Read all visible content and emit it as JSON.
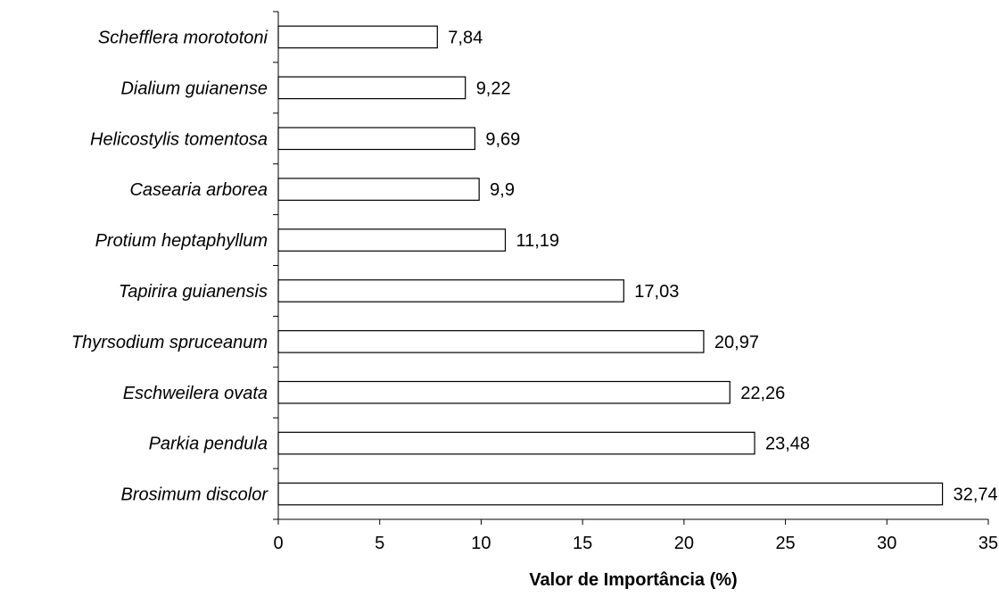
{
  "chart_data": {
    "type": "bar",
    "orientation": "horizontal",
    "categories": [
      "Schefflera morototoni",
      "Dialium guianense",
      "Helicostylis tomentosa",
      "Casearia arborea",
      "Protium heptaphyllum",
      "Tapirira guianensis",
      "Thyrsodium spruceanum",
      "Eschweilera ovata",
      "Parkia pendula",
      "Brosimum discolor"
    ],
    "values": [
      7.84,
      9.22,
      9.69,
      9.9,
      11.19,
      17.03,
      20.97,
      22.26,
      23.48,
      32.74
    ],
    "value_labels": [
      "7,84",
      "9,22",
      "9,69",
      "9,9",
      "11,19",
      "17,03",
      "20,97",
      "22,26",
      "23,48",
      "32,74"
    ],
    "xlabel": "Valor de Importância (%)",
    "ylabel": "",
    "title": "",
    "xlim": [
      0,
      35
    ],
    "xticks": [
      0,
      5,
      10,
      15,
      20,
      25,
      30,
      35
    ],
    "grid": false,
    "legend": "none",
    "bar_fill": "#ffffff",
    "bar_stroke": "#000000"
  }
}
